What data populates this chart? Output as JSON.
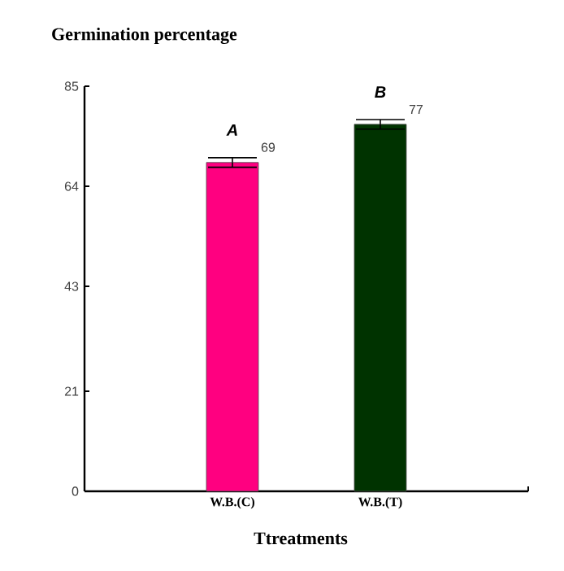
{
  "chart_data": {
    "type": "bar",
    "title": "Germination percentage",
    "xlabel": "Ttreatments",
    "categories": [
      "W.B.(C)",
      "W.B.(T)"
    ],
    "values": [
      69,
      77
    ],
    "colors": [
      "#ff0080",
      "#003300"
    ],
    "errors": [
      1,
      1
    ],
    "data_labels": true,
    "ylim": [
      0,
      85
    ],
    "yticks": [
      0,
      21,
      43,
      64,
      85
    ],
    "annotations": [
      "A",
      "B"
    ]
  }
}
